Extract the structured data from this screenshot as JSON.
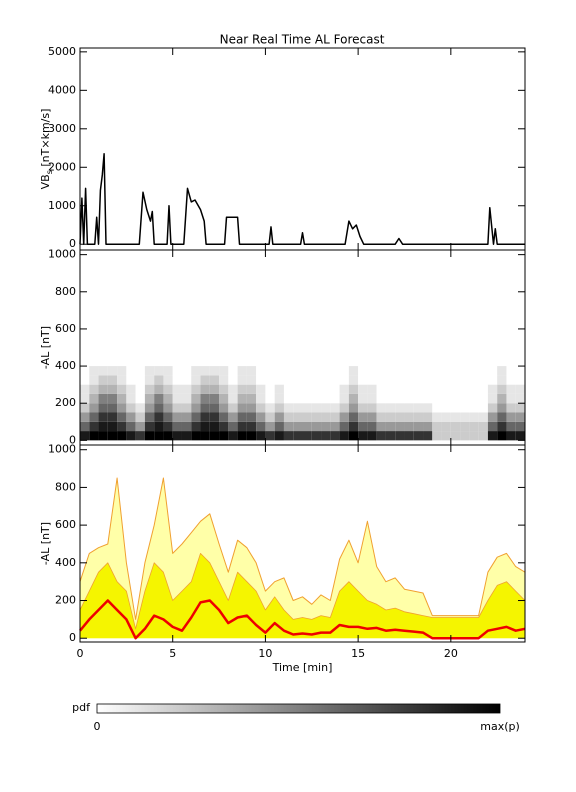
{
  "chart_data": [
    {
      "type": "line",
      "title": "Near Real Time AL Forecast",
      "ylabel": "VB",
      "ylabel_sub": "s",
      "ylabel_unit": " [nT×km/s]",
      "xlim": [
        0,
        24
      ],
      "xticks": [
        0,
        5,
        10,
        15,
        20
      ],
      "ylim": [
        -150,
        5100
      ],
      "yticks": [
        0,
        1000,
        2000,
        3000,
        4000,
        5000
      ],
      "x": [
        0,
        0.1,
        0.2,
        0.3,
        0.4,
        0.5,
        0.8,
        0.9,
        1.0,
        1.1,
        1.2,
        1.3,
        1.4,
        3.2,
        3.4,
        3.6,
        3.8,
        3.9,
        4.0,
        4.7,
        4.8,
        4.9,
        5.6,
        5.8,
        6.0,
        6.2,
        6.5,
        6.7,
        6.8,
        7.8,
        7.9,
        8.5,
        8.6,
        10.2,
        10.3,
        10.4,
        11.9,
        12.0,
        12.1,
        14.3,
        14.5,
        14.7,
        14.9,
        15.1,
        15.3,
        16.0,
        17.0,
        17.2,
        17.4,
        22.0,
        22.1,
        22.3,
        22.4,
        22.5,
        24
      ],
      "series": [
        {
          "color": "#000000",
          "width": 1.5,
          "values": [
            0,
            1200,
            0,
            1450,
            0,
            0,
            0,
            700,
            0,
            1400,
            1800,
            2350,
            0,
            0,
            1350,
            900,
            600,
            850,
            0,
            0,
            1000,
            0,
            0,
            1450,
            1100,
            1150,
            900,
            600,
            0,
            0,
            700,
            700,
            0,
            0,
            450,
            0,
            0,
            300,
            0,
            0,
            600,
            400,
            500,
            200,
            0,
            0,
            0,
            150,
            0,
            0,
            950,
            0,
            400,
            0,
            0
          ]
        }
      ]
    },
    {
      "type": "heatmap",
      "ylabel": "-AL [nT]",
      "xlim": [
        0,
        24
      ],
      "xticks": [
        0,
        5,
        10,
        15,
        20
      ],
      "ylim": [
        -25,
        1025
      ],
      "yticks": [
        0,
        200,
        400,
        600,
        800,
        1000
      ],
      "xbins": [
        0,
        0.5,
        1,
        1.5,
        2,
        2.5,
        3,
        3.5,
        4,
        4.5,
        5,
        5.5,
        6,
        6.5,
        7,
        7.5,
        8,
        8.5,
        9,
        9.5,
        10,
        10.5,
        11,
        11.5,
        12,
        12.5,
        13,
        13.5,
        14,
        14.5,
        15,
        15.5,
        16,
        16.5,
        17,
        17.5,
        18,
        18.5,
        19,
        19.5,
        20,
        20.5,
        21,
        21.5,
        22,
        22.5,
        23,
        23.5,
        24
      ],
      "ybins": [
        0,
        50,
        100,
        150,
        200,
        250,
        300,
        350,
        400
      ],
      "z": [
        [
          0.9,
          0.6,
          0.4,
          0.2,
          0.1,
          0.1,
          0,
          0
        ],
        [
          1,
          0.8,
          0.6,
          0.4,
          0.3,
          0.2,
          0.1,
          0.1
        ],
        [
          1,
          0.9,
          0.8,
          0.6,
          0.5,
          0.3,
          0.2,
          0.1
        ],
        [
          1,
          0.9,
          0.8,
          0.6,
          0.5,
          0.3,
          0.2,
          0.1
        ],
        [
          1,
          0.8,
          0.6,
          0.4,
          0.3,
          0.2,
          0.1,
          0.1
        ],
        [
          0.9,
          0.6,
          0.4,
          0.2,
          0.1,
          0.1,
          0,
          0
        ],
        [
          0.8,
          0.4,
          0.2,
          0.1,
          0,
          0,
          0,
          0
        ],
        [
          1,
          0.8,
          0.6,
          0.4,
          0.3,
          0.2,
          0.1,
          0.1
        ],
        [
          1,
          0.9,
          0.8,
          0.6,
          0.5,
          0.3,
          0.2,
          0.1
        ],
        [
          1,
          0.8,
          0.6,
          0.4,
          0.3,
          0.2,
          0.1,
          0.1
        ],
        [
          0.9,
          0.6,
          0.4,
          0.2,
          0.1,
          0.1,
          0,
          0
        ],
        [
          0.9,
          0.6,
          0.4,
          0.2,
          0.1,
          0.1,
          0,
          0
        ],
        [
          1,
          0.8,
          0.6,
          0.4,
          0.3,
          0.2,
          0.1,
          0.1
        ],
        [
          1,
          0.9,
          0.8,
          0.6,
          0.5,
          0.3,
          0.2,
          0.1
        ],
        [
          1,
          0.9,
          0.8,
          0.6,
          0.5,
          0.3,
          0.2,
          0.1
        ],
        [
          1,
          0.8,
          0.6,
          0.4,
          0.3,
          0.2,
          0.1,
          0.1
        ],
        [
          0.9,
          0.6,
          0.4,
          0.2,
          0.1,
          0.1,
          0,
          0
        ],
        [
          1,
          0.8,
          0.6,
          0.4,
          0.3,
          0.2,
          0.1,
          0.1
        ],
        [
          1,
          0.8,
          0.6,
          0.4,
          0.3,
          0.2,
          0.1,
          0.1
        ],
        [
          0.9,
          0.6,
          0.4,
          0.2,
          0.1,
          0.1,
          0,
          0
        ],
        [
          0.8,
          0.4,
          0.2,
          0.1,
          0,
          0,
          0,
          0
        ],
        [
          0.9,
          0.6,
          0.4,
          0.2,
          0.1,
          0.1,
          0,
          0
        ],
        [
          0.8,
          0.4,
          0.2,
          0.1,
          0,
          0,
          0,
          0
        ],
        [
          0.8,
          0.4,
          0.2,
          0.1,
          0,
          0,
          0,
          0
        ],
        [
          0.8,
          0.4,
          0.2,
          0.1,
          0,
          0,
          0,
          0
        ],
        [
          0.8,
          0.4,
          0.2,
          0.1,
          0,
          0,
          0,
          0
        ],
        [
          0.8,
          0.4,
          0.2,
          0.1,
          0,
          0,
          0,
          0
        ],
        [
          0.8,
          0.4,
          0.2,
          0.1,
          0,
          0,
          0,
          0
        ],
        [
          0.9,
          0.6,
          0.4,
          0.2,
          0.1,
          0.1,
          0,
          0
        ],
        [
          1,
          0.8,
          0.6,
          0.4,
          0.3,
          0.2,
          0.1,
          0.1
        ],
        [
          0.9,
          0.6,
          0.4,
          0.2,
          0.1,
          0.1,
          0,
          0
        ],
        [
          0.9,
          0.6,
          0.4,
          0.2,
          0.1,
          0.1,
          0,
          0
        ],
        [
          0.8,
          0.4,
          0.2,
          0.1,
          0,
          0,
          0,
          0
        ],
        [
          0.8,
          0.4,
          0.2,
          0.1,
          0,
          0,
          0,
          0
        ],
        [
          0.8,
          0.4,
          0.2,
          0.1,
          0,
          0,
          0,
          0
        ],
        [
          0.8,
          0.4,
          0.2,
          0.1,
          0,
          0,
          0,
          0
        ],
        [
          0.8,
          0.4,
          0.2,
          0.1,
          0,
          0,
          0,
          0
        ],
        [
          0.8,
          0.4,
          0.2,
          0.1,
          0,
          0,
          0,
          0
        ],
        [
          0.2,
          0.2,
          0.1,
          0,
          0,
          0,
          0,
          0
        ],
        [
          0.2,
          0.2,
          0.1,
          0,
          0,
          0,
          0,
          0
        ],
        [
          0.2,
          0.2,
          0.1,
          0,
          0,
          0,
          0,
          0
        ],
        [
          0.2,
          0.2,
          0.1,
          0,
          0,
          0,
          0,
          0
        ],
        [
          0.2,
          0.2,
          0.1,
          0,
          0,
          0,
          0,
          0
        ],
        [
          0.2,
          0.2,
          0.1,
          0,
          0,
          0,
          0,
          0
        ],
        [
          0.9,
          0.6,
          0.4,
          0.2,
          0.1,
          0.1,
          0,
          0
        ],
        [
          1,
          0.8,
          0.6,
          0.4,
          0.3,
          0.2,
          0.1,
          0.1
        ],
        [
          0.9,
          0.6,
          0.4,
          0.2,
          0.1,
          0.1,
          0,
          0
        ],
        [
          0.9,
          0.6,
          0.4,
          0.2,
          0.1,
          0.1,
          0,
          0
        ]
      ],
      "colorbar_title": "pdf",
      "colorbar_labels": [
        "0",
        "max(p)"
      ]
    },
    {
      "type": "line",
      "ylabel": "-AL [nT]",
      "xlabel": "Time [min]",
      "xlim": [
        0,
        24
      ],
      "xticks": [
        0,
        5,
        10,
        15,
        20
      ],
      "ylim": [
        -20,
        1025
      ],
      "yticks": [
        0,
        200,
        400,
        600,
        800,
        1000
      ],
      "x": [
        0,
        0.5,
        1,
        1.5,
        2,
        2.5,
        3,
        3.5,
        4,
        4.5,
        5,
        5.5,
        6,
        6.5,
        7,
        7.5,
        8,
        8.5,
        9,
        9.5,
        10,
        10.5,
        11,
        11.5,
        12,
        12.5,
        13,
        13.5,
        14,
        14.5,
        15,
        15.5,
        16,
        16.5,
        17,
        17.5,
        18,
        18.5,
        19,
        19.5,
        20,
        20.5,
        21,
        21.5,
        22,
        22.5,
        23,
        23.5,
        24
      ],
      "series": [
        {
          "color": "#f0a030",
          "fill": "#ffffa8",
          "width": 1,
          "values": [
            300,
            450,
            480,
            500,
            850,
            400,
            100,
            400,
            600,
            850,
            450,
            500,
            560,
            620,
            660,
            500,
            350,
            520,
            480,
            400,
            250,
            300,
            320,
            200,
            220,
            180,
            230,
            200,
            420,
            520,
            400,
            620,
            380,
            300,
            320,
            260,
            250,
            240,
            120,
            120,
            120,
            120,
            120,
            120,
            350,
            430,
            450,
            380,
            350
          ]
        },
        {
          "color": "#f0a030",
          "fill": "#f5f500",
          "width": 0.8,
          "values": [
            150,
            250,
            350,
            400,
            300,
            250,
            50,
            250,
            400,
            350,
            200,
            250,
            300,
            450,
            400,
            300,
            200,
            350,
            300,
            250,
            150,
            220,
            150,
            100,
            110,
            100,
            120,
            110,
            250,
            300,
            250,
            200,
            180,
            150,
            160,
            140,
            130,
            120,
            110,
            110,
            110,
            110,
            110,
            110,
            200,
            280,
            300,
            250,
            200
          ]
        },
        {
          "color": "#ee0000",
          "width": 2.5,
          "values": [
            40,
            100,
            150,
            200,
            150,
            100,
            0,
            50,
            120,
            100,
            60,
            40,
            110,
            190,
            200,
            150,
            80,
            110,
            120,
            70,
            30,
            80,
            40,
            20,
            25,
            20,
            30,
            30,
            70,
            60,
            60,
            50,
            55,
            40,
            45,
            40,
            35,
            30,
            0,
            0,
            0,
            0,
            0,
            0,
            40,
            50,
            60,
            40,
            50
          ]
        }
      ]
    }
  ]
}
